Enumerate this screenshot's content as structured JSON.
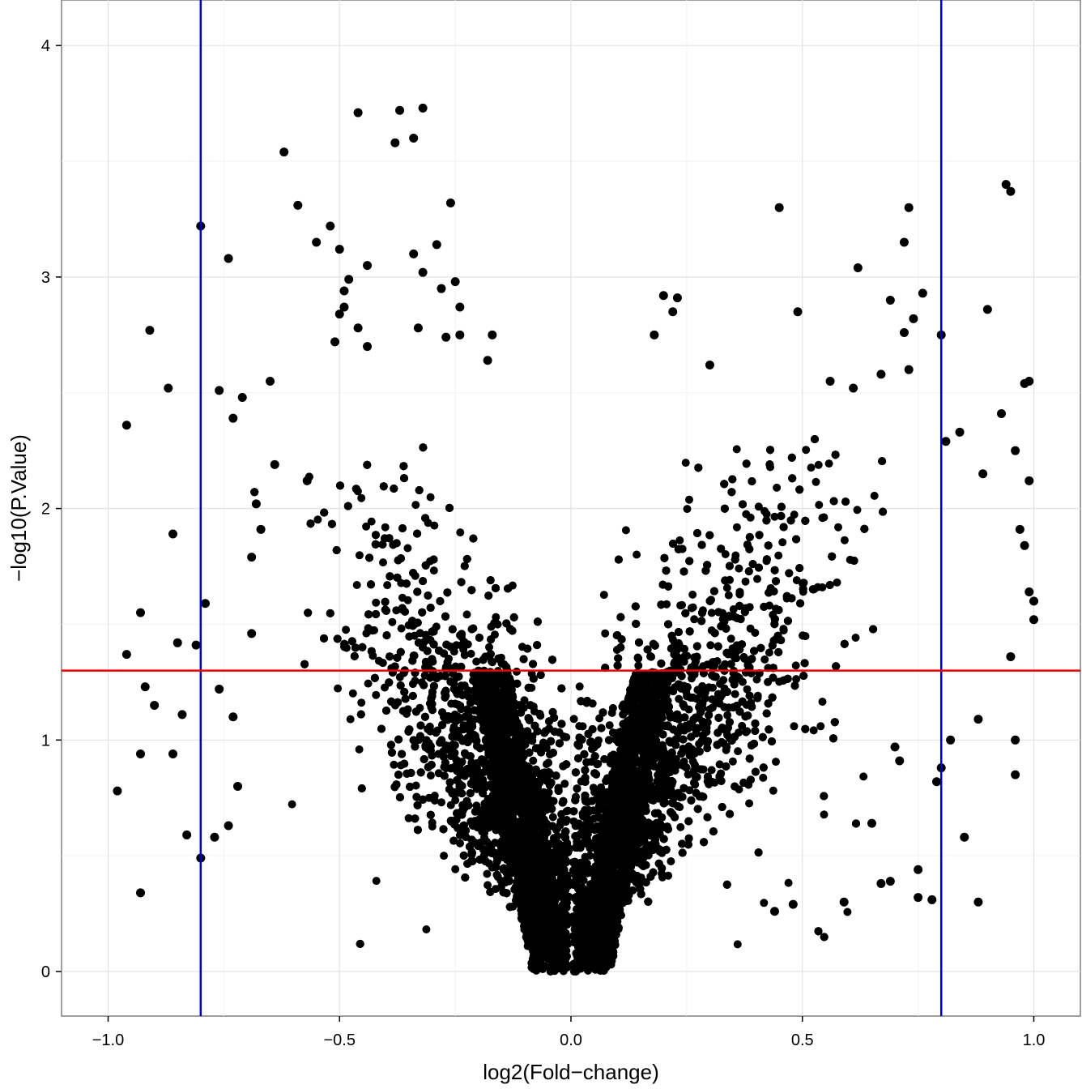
{
  "chart_data": {
    "type": "scatter",
    "title": "",
    "xlabel": "log2(Fold−change)",
    "ylabel": "−log10(P.Value)",
    "xlim": [
      -1.1,
      1.1
    ],
    "ylim": [
      -0.18,
      4.2
    ],
    "x_ticks": [
      -1.0,
      -0.5,
      0.0,
      0.5,
      1.0
    ],
    "x_tick_labels": [
      "−1.0",
      "−0.5",
      "0.0",
      "0.5",
      "1.0"
    ],
    "y_ticks": [
      0,
      1,
      2,
      3,
      4
    ],
    "y_tick_labels": [
      "0",
      "1",
      "2",
      "3",
      "4"
    ],
    "grid": true,
    "point_color": "#000000",
    "reference_lines": {
      "vertical": [
        -0.8,
        0.8
      ],
      "vertical_color": "#0000CC",
      "horizontal": [
        1.3
      ],
      "horizontal_color": "#EE0000"
    },
    "points": [
      [
        -0.46,
        3.71
      ],
      [
        -0.32,
        3.73
      ],
      [
        -0.37,
        3.72
      ],
      [
        -0.38,
        3.58
      ],
      [
        -0.34,
        3.6
      ],
      [
        -0.62,
        3.54
      ],
      [
        -0.59,
        3.31
      ],
      [
        -0.26,
        3.32
      ],
      [
        -0.52,
        3.22
      ],
      [
        -0.8,
        3.22
      ],
      [
        -0.5,
        3.12
      ],
      [
        -0.55,
        3.15
      ],
      [
        -0.29,
        3.14
      ],
      [
        -0.34,
        3.1
      ],
      [
        -0.74,
        3.08
      ],
      [
        -0.44,
        3.05
      ],
      [
        -0.32,
        3.02
      ],
      [
        -0.48,
        2.99
      ],
      [
        -0.25,
        2.98
      ],
      [
        -0.28,
        2.95
      ],
      [
        -0.49,
        2.94
      ],
      [
        -0.5,
        2.84
      ],
      [
        -0.49,
        2.87
      ],
      [
        -0.24,
        2.87
      ],
      [
        -0.91,
        2.77
      ],
      [
        -0.46,
        2.78
      ],
      [
        -0.33,
        2.78
      ],
      [
        -0.17,
        2.75
      ],
      [
        -0.24,
        2.75
      ],
      [
        -0.51,
        2.72
      ],
      [
        -0.27,
        2.74
      ],
      [
        -0.44,
        2.7
      ],
      [
        -0.18,
        2.64
      ],
      [
        -0.87,
        2.52
      ],
      [
        -0.76,
        2.51
      ],
      [
        -0.71,
        2.48
      ],
      [
        -0.96,
        2.36
      ],
      [
        -0.73,
        2.39
      ],
      [
        -0.65,
        2.55
      ],
      [
        -0.64,
        2.19
      ],
      [
        -0.57,
        2.12
      ],
      [
        -0.68,
        2.02
      ],
      [
        -0.67,
        1.91
      ],
      [
        -0.86,
        1.89
      ],
      [
        -0.69,
        1.79
      ],
      [
        -0.96,
        1.37
      ],
      [
        -0.93,
        1.55
      ],
      [
        -0.85,
        1.42
      ],
      [
        -0.81,
        1.41
      ],
      [
        -0.79,
        1.59
      ],
      [
        -0.76,
        1.22
      ],
      [
        -0.73,
        1.1
      ],
      [
        -0.92,
        1.23
      ],
      [
        -0.9,
        1.15
      ],
      [
        -0.84,
        1.11
      ],
      [
        -0.93,
        0.94
      ],
      [
        -0.86,
        0.94
      ],
      [
        -0.98,
        0.78
      ],
      [
        -0.83,
        0.59
      ],
      [
        -0.8,
        0.49
      ],
      [
        -0.93,
        0.34
      ],
      [
        -0.77,
        0.58
      ],
      [
        -0.72,
        0.8
      ],
      [
        -0.74,
        0.63
      ],
      [
        -0.69,
        1.46
      ],
      [
        0.45,
        3.3
      ],
      [
        0.73,
        3.3
      ],
      [
        0.94,
        3.4
      ],
      [
        0.95,
        3.37
      ],
      [
        0.72,
        3.15
      ],
      [
        0.62,
        3.04
      ],
      [
        0.76,
        2.93
      ],
      [
        0.69,
        2.9
      ],
      [
        0.2,
        2.92
      ],
      [
        0.23,
        2.91
      ],
      [
        0.9,
        2.86
      ],
      [
        0.49,
        2.85
      ],
      [
        0.22,
        2.85
      ],
      [
        0.74,
        2.82
      ],
      [
        0.18,
        2.75
      ],
      [
        0.72,
        2.76
      ],
      [
        0.8,
        2.75
      ],
      [
        0.3,
        2.62
      ],
      [
        0.99,
        2.55
      ],
      [
        0.98,
        2.54
      ],
      [
        0.56,
        2.55
      ],
      [
        0.61,
        2.52
      ],
      [
        0.67,
        2.58
      ],
      [
        0.73,
        2.6
      ],
      [
        0.93,
        2.41
      ],
      [
        0.96,
        2.25
      ],
      [
        0.81,
        2.29
      ],
      [
        0.84,
        2.33
      ],
      [
        0.99,
        2.12
      ],
      [
        0.89,
        2.15
      ],
      [
        0.97,
        1.91
      ],
      [
        0.98,
        1.84
      ],
      [
        0.99,
        1.64
      ],
      [
        1.0,
        1.6
      ],
      [
        1.0,
        1.52
      ],
      [
        0.95,
        1.36
      ],
      [
        0.88,
        1.09
      ],
      [
        0.96,
        1.0
      ],
      [
        0.96,
        0.85
      ],
      [
        0.85,
        0.58
      ],
      [
        0.88,
        0.3
      ],
      [
        0.75,
        0.32
      ],
      [
        0.78,
        0.31
      ],
      [
        0.75,
        0.44
      ],
      [
        0.69,
        0.39
      ],
      [
        0.67,
        0.38
      ],
      [
        0.59,
        0.3
      ],
      [
        0.48,
        0.29
      ],
      [
        0.44,
        0.26
      ],
      [
        0.79,
        0.82
      ],
      [
        0.8,
        0.88
      ],
      [
        0.82,
        1.0
      ],
      [
        0.71,
        0.91
      ],
      [
        0.7,
        0.97
      ],
      [
        0.65,
        0.64
      ]
    ],
    "cloud": {
      "description_free": true,
      "apex": [
        0.0,
        0.0
      ],
      "left_arm_x_range": [
        -0.6,
        -0.02
      ],
      "right_arm_x_range": [
        0.02,
        0.7
      ],
      "max_y": 2.3
    }
  }
}
